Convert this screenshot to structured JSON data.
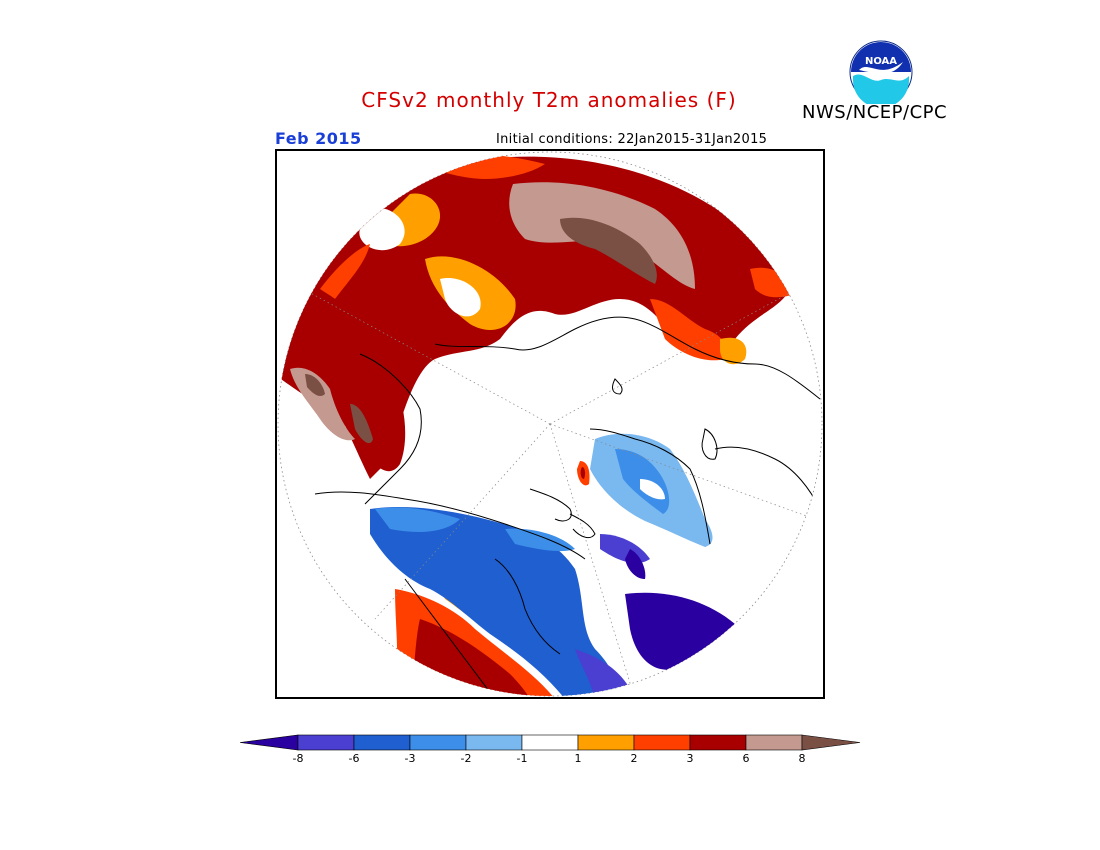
{
  "header": {
    "title": "CFSv2 monthly T2m anomalies (F)",
    "agency": "NWS/NCEP/CPC",
    "logo_text": "NOAA",
    "month": "Feb 2015",
    "initial_conditions": "Initial conditions: 22Jan2015-31Jan2015"
  },
  "colors": {
    "title": "#d40000",
    "month": "#1a3fd6",
    "bins": [
      "#2a00a0",
      "#4a3fd0",
      "#1f5fd0",
      "#3c8ee8",
      "#7ab8f0",
      "#ffffff",
      "#ffa000",
      "#ff3f00",
      "#a80000",
      "#c4998f",
      "#7a4f44"
    ]
  },
  "colorbar": {
    "labels": [
      "-8",
      "-6",
      "-3",
      "-2",
      "-1",
      "1",
      "2",
      "3",
      "6",
      "8"
    ]
  },
  "map": {
    "projection": "north polar stereographic",
    "variable": "2m temperature anomaly",
    "units": "F"
  }
}
